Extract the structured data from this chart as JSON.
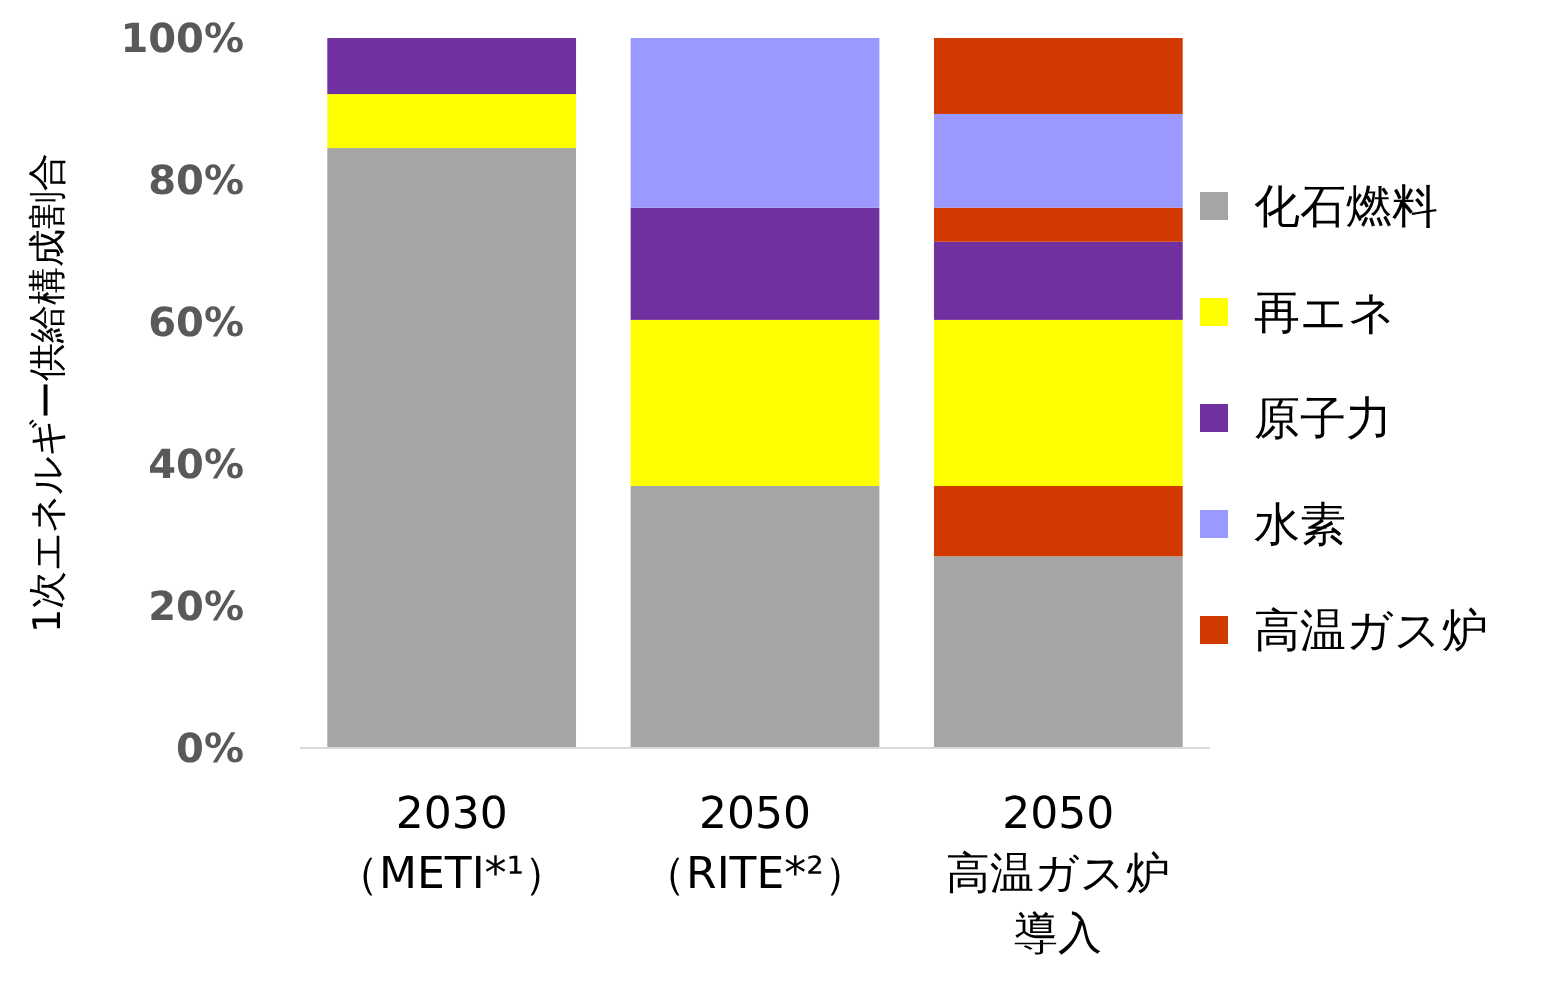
{
  "chart_data": {
    "type": "bar",
    "stacked": true,
    "ylabel": "1次エネルギー供給構成割合",
    "categories": [
      "2030\n（METI*¹）",
      "2050\n（RITE*²）",
      "2050\n高温ガス炉導入"
    ],
    "ylim": [
      0,
      100
    ],
    "yticks": [
      {
        "value": 0,
        "label": "0%"
      },
      {
        "value": 20,
        "label": "20%"
      },
      {
        "value": 40,
        "label": "40%"
      },
      {
        "value": 60,
        "label": "60%"
      },
      {
        "value": 80,
        "label": "80%"
      },
      {
        "value": 100,
        "label": "100%"
      }
    ],
    "grid": false,
    "legend": "right",
    "series": [
      {
        "name": "化石燃料",
        "color": "#a5a5a5",
        "values": [
          84.5,
          36.9,
          27.0
        ]
      },
      {
        "color": "#d03a00",
        "values": [
          0,
          0,
          9.9
        ]
      },
      {
        "name": "再エネ",
        "color": "#ffff00",
        "values": [
          7.6,
          23.4,
          23.4
        ]
      },
      {
        "name": "原子力",
        "color": "#7030a0",
        "values": [
          7.9,
          15.8,
          11.0
        ]
      },
      {
        "color": "#d03a00",
        "values": [
          0,
          0,
          4.8
        ]
      },
      {
        "name": "水素",
        "color": "#9999ff",
        "values": [
          0,
          23.9,
          13.2
        ]
      },
      {
        "name": "高温ガス炉",
        "color": "#d03a00",
        "values": [
          0,
          0,
          10.7
        ]
      }
    ]
  }
}
